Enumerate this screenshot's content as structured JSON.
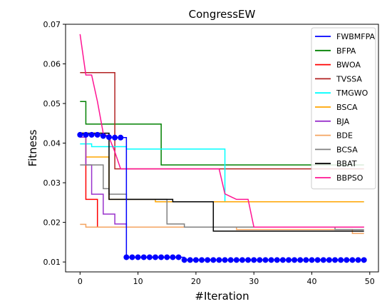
{
  "chart_data": {
    "type": "line",
    "title": "CongressEW",
    "xlabel": "#Iteration",
    "ylabel": "Fitness",
    "xlim": [
      -2.5,
      51.5
    ],
    "ylim": [
      0.0075,
      0.07
    ],
    "xticks": [
      0,
      10,
      20,
      30,
      40,
      50
    ],
    "yticks": [
      0.01,
      0.02,
      0.03,
      0.04,
      0.05,
      0.06,
      0.07
    ],
    "xtick_labels": [
      "0",
      "10",
      "20",
      "30",
      "40",
      "50"
    ],
    "ytick_labels": [
      "0.01",
      "0.02",
      "0.03",
      "0.04",
      "0.05",
      "0.06",
      "0.07"
    ],
    "grid": false,
    "legend_position": "top-right",
    "series": [
      {
        "name": "FWBMFPA",
        "color": "#0000ff",
        "marker": "circle",
        "step": true,
        "points": [
          [
            0,
            0.0421
          ],
          [
            1,
            0.0421
          ],
          [
            2,
            0.0421
          ],
          [
            3,
            0.0421
          ],
          [
            4,
            0.0418
          ],
          [
            5,
            0.0415
          ],
          [
            6,
            0.0414
          ],
          [
            7,
            0.0414
          ],
          [
            8,
            0.0112
          ],
          [
            9,
            0.0112
          ],
          [
            10,
            0.0112
          ],
          [
            11,
            0.0112
          ],
          [
            12,
            0.0112
          ],
          [
            13,
            0.0112
          ],
          [
            14,
            0.0112
          ],
          [
            15,
            0.0112
          ],
          [
            16,
            0.0112
          ],
          [
            17,
            0.0112
          ],
          [
            18,
            0.0105
          ],
          [
            19,
            0.0105
          ],
          [
            20,
            0.0105
          ],
          [
            21,
            0.0105
          ],
          [
            22,
            0.0105
          ],
          [
            23,
            0.0105
          ],
          [
            24,
            0.0105
          ],
          [
            25,
            0.0105
          ],
          [
            26,
            0.0105
          ],
          [
            27,
            0.0105
          ],
          [
            28,
            0.0105
          ],
          [
            29,
            0.0105
          ],
          [
            30,
            0.0105
          ],
          [
            31,
            0.0105
          ],
          [
            32,
            0.0105
          ],
          [
            33,
            0.0105
          ],
          [
            34,
            0.0105
          ],
          [
            35,
            0.0105
          ],
          [
            36,
            0.0105
          ],
          [
            37,
            0.0105
          ],
          [
            38,
            0.0105
          ],
          [
            39,
            0.0105
          ],
          [
            40,
            0.0105
          ],
          [
            41,
            0.0105
          ],
          [
            42,
            0.0105
          ],
          [
            43,
            0.0105
          ],
          [
            44,
            0.0105
          ],
          [
            45,
            0.0105
          ],
          [
            46,
            0.0105
          ],
          [
            47,
            0.0105
          ],
          [
            48,
            0.0105
          ],
          [
            49,
            0.0105
          ]
        ]
      },
      {
        "name": "BFPA",
        "color": "#008000",
        "marker": "none",
        "step": true,
        "points": [
          [
            0,
            0.0505
          ],
          [
            1,
            0.0448
          ],
          [
            13,
            0.0448
          ],
          [
            14,
            0.0345
          ],
          [
            49,
            0.0345
          ]
        ]
      },
      {
        "name": "BWOA",
        "color": "#ff0000",
        "marker": "none",
        "step": true,
        "points": [
          [
            0,
            0.0425
          ],
          [
            1,
            0.0258
          ],
          [
            2,
            0.0258
          ],
          [
            3,
            0.0188
          ],
          [
            49,
            0.0188
          ]
        ]
      },
      {
        "name": "TVSSA",
        "color": "#b22222",
        "marker": "none",
        "step": true,
        "points": [
          [
            0,
            0.0578
          ],
          [
            5,
            0.0578
          ],
          [
            6,
            0.0335
          ],
          [
            49,
            0.0335
          ]
        ]
      },
      {
        "name": "TMGWO",
        "color": "#00ffff",
        "marker": "none",
        "step": true,
        "points": [
          [
            0,
            0.0398
          ],
          [
            1,
            0.0398
          ],
          [
            2,
            0.0391
          ],
          [
            7,
            0.0391
          ],
          [
            8,
            0.0385
          ],
          [
            24,
            0.0385
          ],
          [
            25,
            0.0252
          ],
          [
            49,
            0.0252
          ]
        ]
      },
      {
        "name": "BSCA",
        "color": "#ffa500",
        "marker": "none",
        "step": true,
        "points": [
          [
            0,
            0.0425
          ],
          [
            1,
            0.0365
          ],
          [
            4,
            0.0365
          ],
          [
            5,
            0.0258
          ],
          [
            12,
            0.0258
          ],
          [
            13,
            0.0252
          ],
          [
            49,
            0.0252
          ]
        ]
      },
      {
        "name": "BJA",
        "color": "#9932cc",
        "marker": "none",
        "step": true,
        "points": [
          [
            0,
            0.0415
          ],
          [
            1,
            0.0345
          ],
          [
            2,
            0.0271
          ],
          [
            3,
            0.0271
          ],
          [
            4,
            0.0221
          ],
          [
            5,
            0.0221
          ],
          [
            6,
            0.0196
          ],
          [
            7,
            0.0196
          ],
          [
            8,
            0.0188
          ],
          [
            49,
            0.0188
          ]
        ]
      },
      {
        "name": "BDE",
        "color": "#f4a460",
        "marker": "none",
        "step": true,
        "points": [
          [
            0,
            0.0195
          ],
          [
            1,
            0.0188
          ],
          [
            26,
            0.0188
          ],
          [
            27,
            0.0182
          ],
          [
            46,
            0.0182
          ],
          [
            47,
            0.0172
          ],
          [
            49,
            0.0172
          ]
        ]
      },
      {
        "name": "BCSA",
        "color": "#808080",
        "marker": "none",
        "step": true,
        "points": [
          [
            0,
            0.0345
          ],
          [
            3,
            0.0345
          ],
          [
            4,
            0.0285
          ],
          [
            5,
            0.0271
          ],
          [
            7,
            0.0271
          ],
          [
            8,
            0.0258
          ],
          [
            14,
            0.0258
          ],
          [
            15,
            0.0196
          ],
          [
            17,
            0.0196
          ],
          [
            18,
            0.0188
          ],
          [
            43,
            0.0188
          ],
          [
            44,
            0.0182
          ],
          [
            49,
            0.0182
          ]
        ]
      },
      {
        "name": "BBAT",
        "color": "#000000",
        "marker": "none",
        "step": true,
        "points": [
          [
            0,
            0.0425
          ],
          [
            4,
            0.0425
          ],
          [
            5,
            0.0258
          ],
          [
            15,
            0.0258
          ],
          [
            16,
            0.0252
          ],
          [
            22,
            0.0252
          ],
          [
            23,
            0.0178
          ],
          [
            49,
            0.0178
          ]
        ]
      },
      {
        "name": "BBPSO",
        "color": "#ff1493",
        "marker": "none",
        "step": false,
        "points": [
          [
            0,
            0.0675
          ],
          [
            1,
            0.0572
          ],
          [
            2,
            0.0572
          ],
          [
            3,
            0.0505
          ],
          [
            4,
            0.0425
          ],
          [
            5,
            0.0415
          ],
          [
            6,
            0.0378
          ],
          [
            7,
            0.0335
          ],
          [
            24,
            0.0335
          ],
          [
            25,
            0.0272
          ],
          [
            26,
            0.0265
          ],
          [
            27,
            0.0258
          ],
          [
            28,
            0.0258
          ],
          [
            29,
            0.0258
          ],
          [
            30,
            0.0188
          ],
          [
            49,
            0.0188
          ]
        ]
      }
    ]
  }
}
